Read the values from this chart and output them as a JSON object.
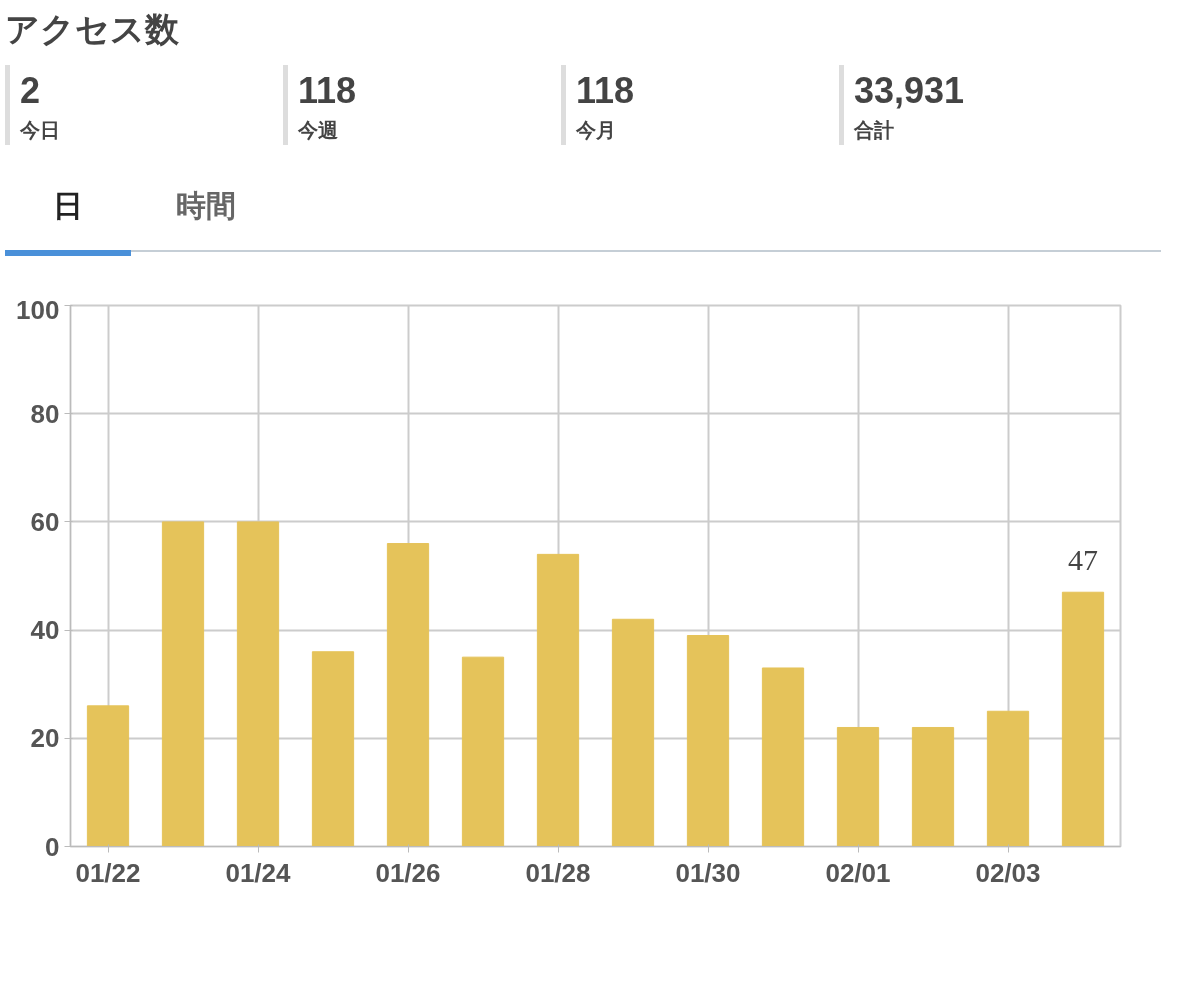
{
  "chart_data": {
    "type": "bar",
    "title": "アクセス数",
    "annotations": [
      "2",
      "今日",
      "118",
      "今週",
      "118",
      "今月",
      "33,931",
      "合計",
      "日",
      "時間"
    ],
    "categories": [
      "01/22",
      null,
      "01/24",
      null,
      "01/26",
      null,
      "01/28",
      null,
      "01/30",
      null,
      "02/01",
      null,
      "02/03",
      null
    ],
    "values": [
      26,
      60,
      60,
      36,
      56,
      35,
      54,
      42,
      39,
      33,
      22,
      22,
      25,
      47
    ],
    "value_labels": [
      null,
      null,
      null,
      null,
      null,
      null,
      null,
      null,
      null,
      null,
      null,
      null,
      null,
      "47"
    ],
    "color": "#e5c35a",
    "ylim": [
      0,
      100
    ],
    "yticks": [
      0,
      20,
      40,
      60,
      80,
      100
    ],
    "grid": true
  }
}
